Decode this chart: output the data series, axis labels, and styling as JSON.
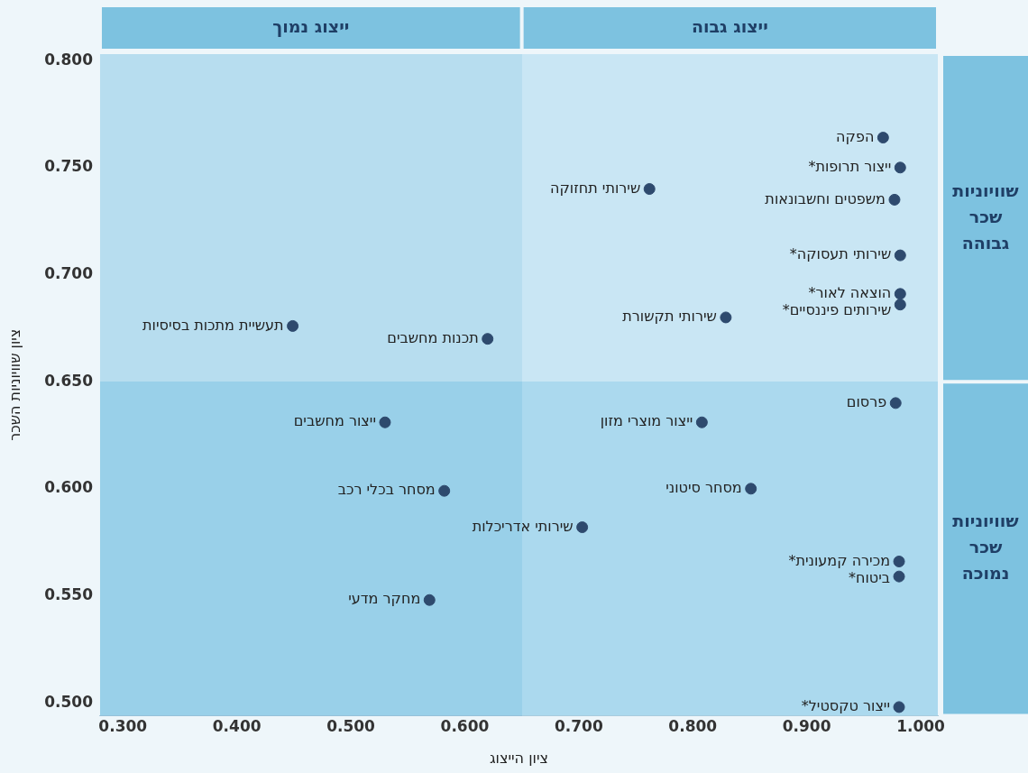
{
  "chart_data": {
    "type": "scatter",
    "xlabel": "ציון הייצוג",
    "ylabel": "ציון שוויוניות השכר",
    "x": [
      0.967,
      0.982,
      0.977,
      0.762,
      0.982,
      0.982,
      0.982,
      0.829,
      0.449,
      0.62,
      0.978,
      0.808,
      0.851,
      0.703,
      0.981,
      0.981,
      0.981,
      0.53,
      0.582,
      0.569
    ],
    "values": [
      0.764,
      0.75,
      0.735,
      0.74,
      0.709,
      0.691,
      0.686,
      0.68,
      0.676,
      0.67,
      0.64,
      0.631,
      0.6,
      0.582,
      0.566,
      0.559,
      0.498,
      0.631,
      0.599,
      0.548
    ],
    "color": "#2e4a6e",
    "marker": "circle",
    "xlim": [
      0.28,
      1.015
    ],
    "ylim": [
      0.494,
      0.803
    ],
    "xticks": [
      {
        "value": 0.3,
        "label": "0.300"
      },
      {
        "value": 0.4,
        "label": "0.400"
      },
      {
        "value": 0.5,
        "label": "0.500"
      },
      {
        "value": 0.6,
        "label": "0.600"
      },
      {
        "value": 0.7,
        "label": "0.700"
      },
      {
        "value": 0.8,
        "label": "0.800"
      },
      {
        "value": 0.9,
        "label": "0.900"
      },
      {
        "value": 1.0,
        "label": "1.000"
      }
    ],
    "yticks": [
      {
        "value": 0.5,
        "label": "0.500"
      },
      {
        "value": 0.55,
        "label": "0.550"
      },
      {
        "value": 0.6,
        "label": "0.600"
      },
      {
        "value": 0.65,
        "label": "0.650"
      },
      {
        "value": 0.7,
        "label": "0.700"
      },
      {
        "value": 0.75,
        "label": "0.750"
      },
      {
        "value": 0.8,
        "label": "0.800"
      }
    ],
    "grid": false,
    "legend": false,
    "bands": [
      {
        "axis": "x",
        "from": 0.28,
        "to": 0.65,
        "label": "ייצוג נמוך",
        "color": "#5fb2da"
      },
      {
        "axis": "x",
        "from": 0.65,
        "to": 1.015,
        "label": "ייצוג גבוה",
        "color": "#a8d8ee"
      },
      {
        "axis": "y",
        "from": 0.65,
        "to": 0.803,
        "label": "שוויוניות שכר גבוהה",
        "color": "#c8e6f4"
      },
      {
        "axis": "y",
        "from": 0.494,
        "to": 0.65,
        "label": "שוויוניות שכר נמוכה",
        "color": "#8ccbe8"
      }
    ],
    "annotations": [
      {
        "text": "הפקה",
        "x": 0.967,
        "y": 0.764
      },
      {
        "text": "ייצור תרופות*",
        "x": 0.982,
        "y": 0.75
      },
      {
        "text": "משפטים וחשבונאות",
        "x": 0.977,
        "y": 0.735
      },
      {
        "text": "שירותי תחזוקה",
        "x": 0.762,
        "y": 0.74
      },
      {
        "text": "שירותי תעסוקה*",
        "x": 0.982,
        "y": 0.709
      },
      {
        "text": "הוצאה לאור*",
        "x": 0.982,
        "y": 0.691
      },
      {
        "text": "שירותים פיננסיים*",
        "x": 0.982,
        "y": 0.686
      },
      {
        "text": "שירותי תקשורת",
        "x": 0.829,
        "y": 0.68
      },
      {
        "text": "תעשיית מתכות בסיסיות",
        "x": 0.449,
        "y": 0.676
      },
      {
        "text": "תכנות מחשבים",
        "x": 0.62,
        "y": 0.67
      },
      {
        "text": "פרסום",
        "x": 0.978,
        "y": 0.64
      },
      {
        "text": "ייצור מוצרי מזון",
        "x": 0.808,
        "y": 0.631
      },
      {
        "text": "מסחר סיטוני",
        "x": 0.851,
        "y": 0.6
      },
      {
        "text": "שירותי אדריכלות",
        "x": 0.703,
        "y": 0.582
      },
      {
        "text": "מכירה קמעונית*",
        "x": 0.981,
        "y": 0.566
      },
      {
        "text": "ביטוח*",
        "x": 0.981,
        "y": 0.559
      },
      {
        "text": "ייצור טקסטיל*",
        "x": 0.981,
        "y": 0.498
      },
      {
        "text": "ייצור מחשבים",
        "x": 0.53,
        "y": 0.631
      },
      {
        "text": "מסחר בכלי רכב",
        "x": 0.582,
        "y": 0.599
      },
      {
        "text": "מחקר מדעי",
        "x": 0.569,
        "y": 0.548
      }
    ]
  }
}
